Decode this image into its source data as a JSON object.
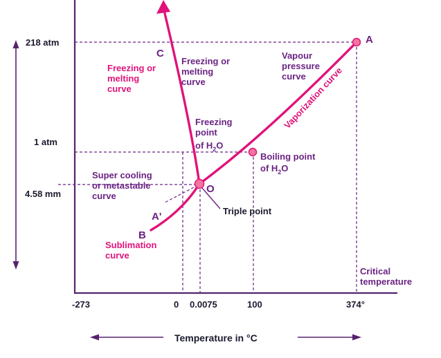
{
  "colors": {
    "axis": "#55226e",
    "curve": "#e0137a",
    "point_fill": "#f2759f",
    "label_purple": "#6a2382",
    "label_magenta": "#e0137a",
    "dash": "#6a2382",
    "text_dark": "#1a1a2e"
  },
  "y_axis": {
    "ticks": [
      "218 atm",
      "1 atm",
      "4.58 mm"
    ]
  },
  "x_axis": {
    "ticks": [
      "-273",
      "0",
      "0.0075",
      "100",
      "374°"
    ],
    "title": "Temperature in °C"
  },
  "points": {
    "A": "A",
    "A_prime": "A'",
    "B": "B",
    "C": "C",
    "O": "O"
  },
  "labels": {
    "freezing_melting_magenta": [
      "Freezing or",
      "melting",
      "curve"
    ],
    "freezing_melting_purple": [
      "Freezing or",
      "melting",
      "curve"
    ],
    "vapour_pressure": [
      "Vapour",
      "pressure",
      "curve"
    ],
    "vaporization_curve": "Vaporization curve",
    "freezing_point": [
      "Freezing",
      "point",
      "of H",
      "2",
      "O"
    ],
    "boiling_point": [
      "Boiling point",
      "of H",
      "2",
      "O"
    ],
    "super_cooling": [
      "Super cooling",
      "or metastable",
      "curve"
    ],
    "triple_point": "Triple point",
    "sublimation": [
      "Sublimation",
      "curve"
    ],
    "critical": [
      "Critical",
      "temperature"
    ]
  }
}
